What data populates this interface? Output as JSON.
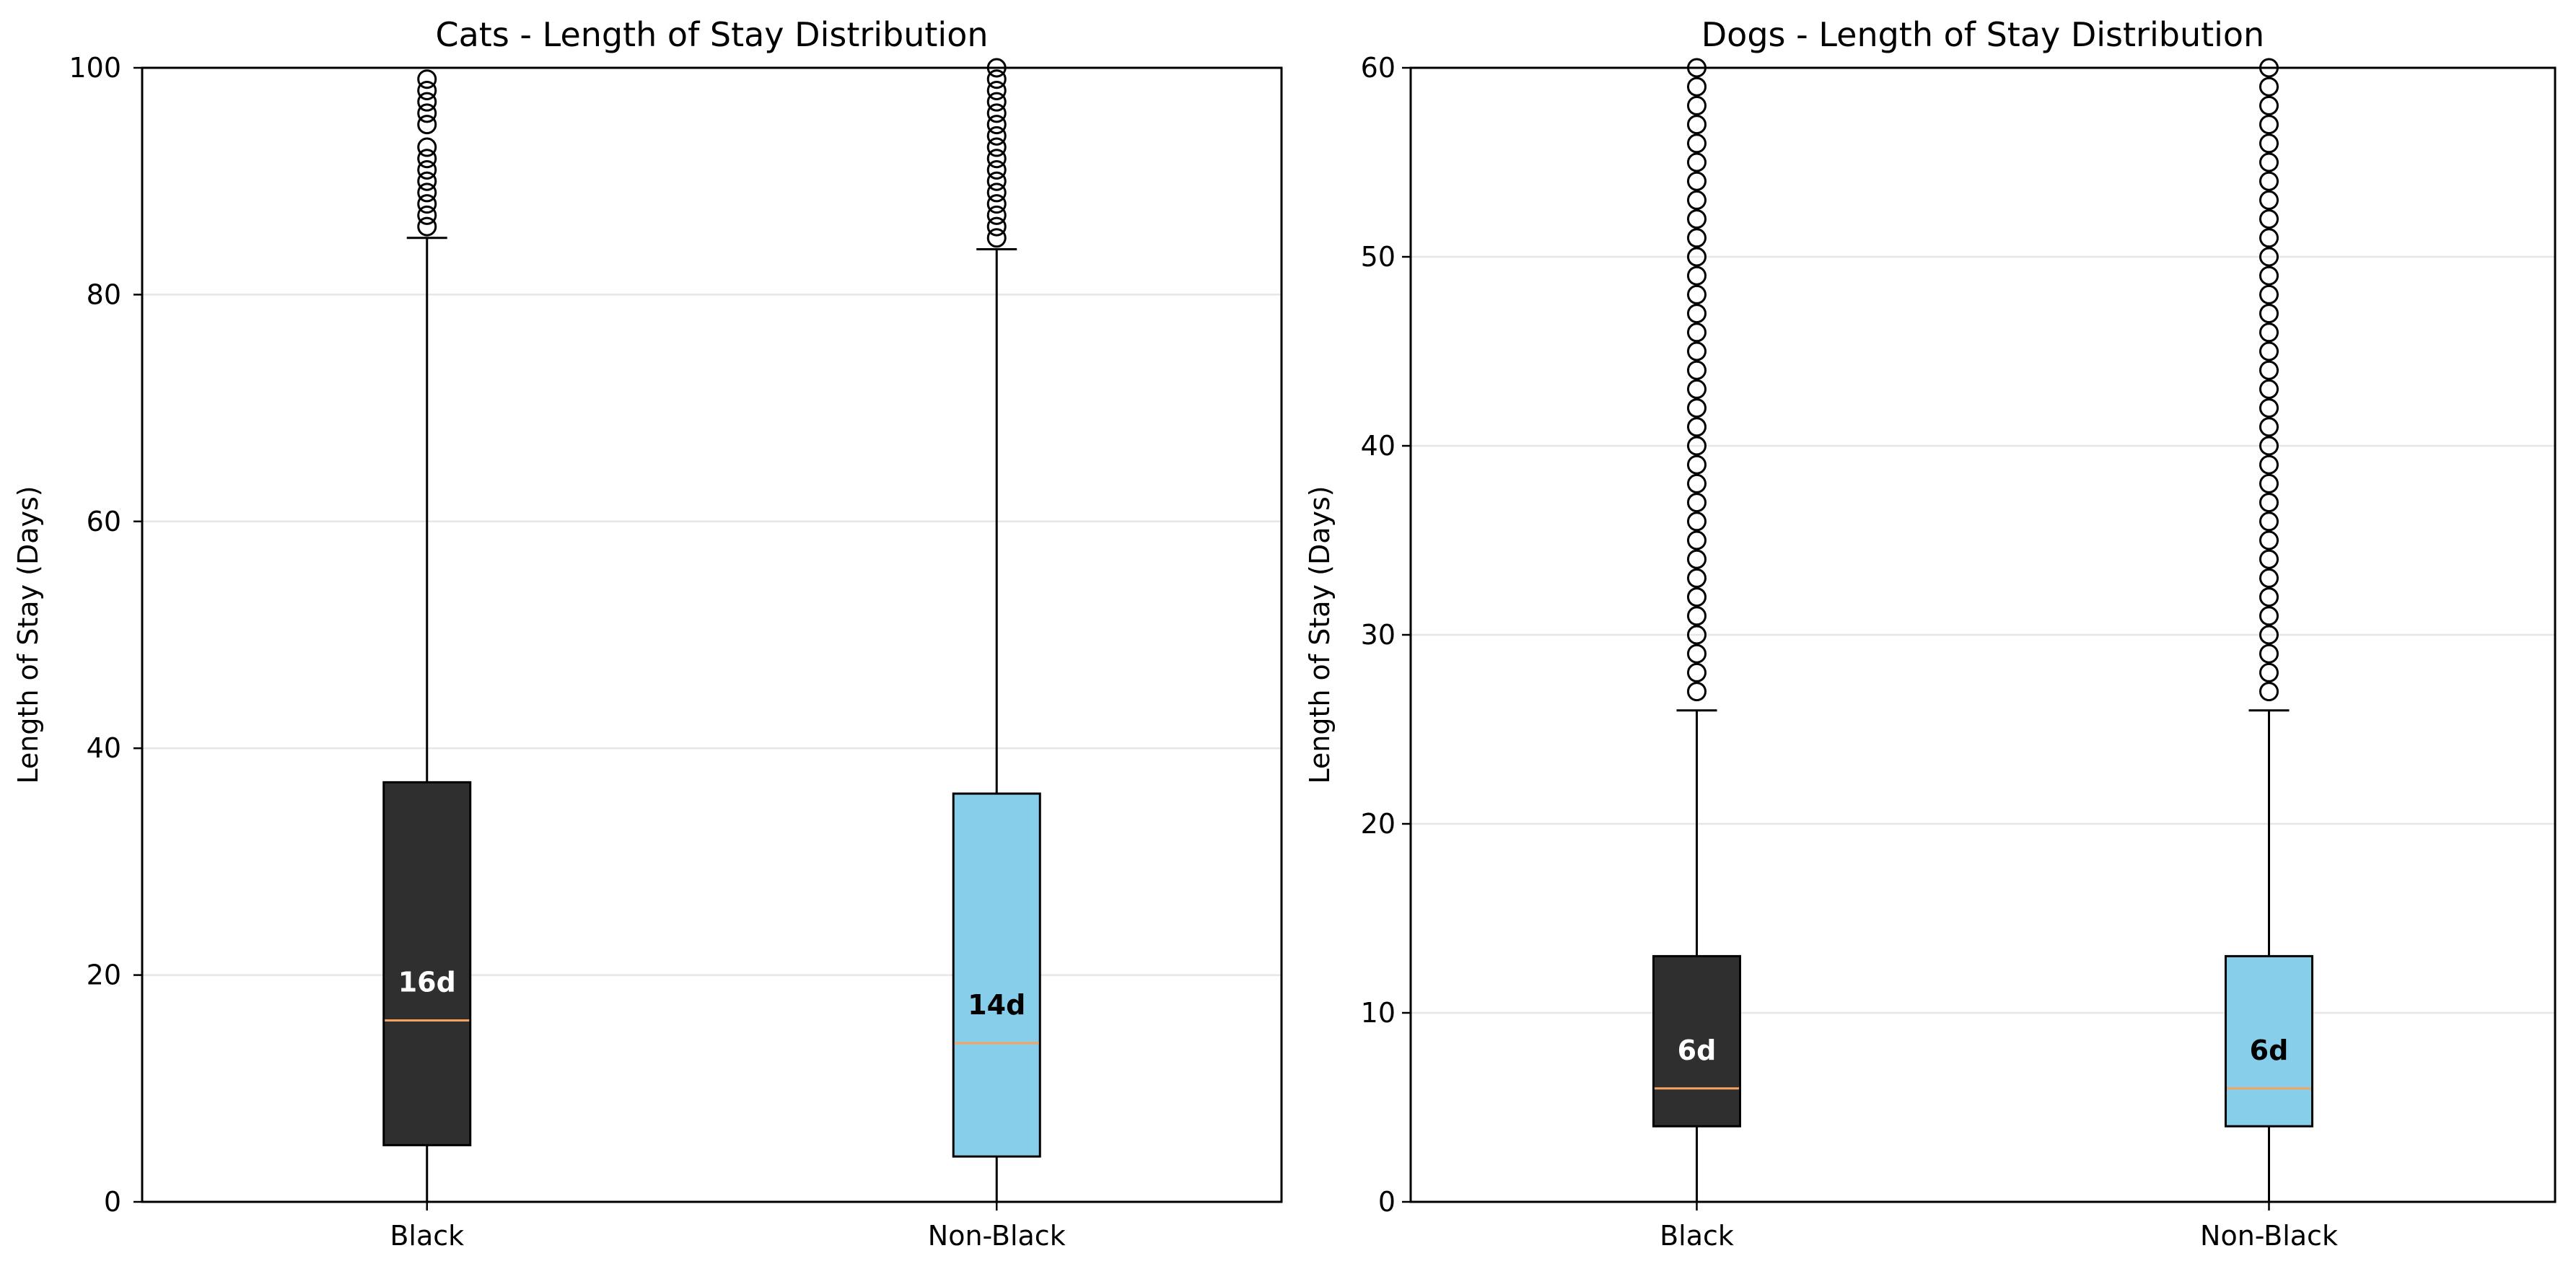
{
  "chart_data": [
    {
      "type": "box",
      "title": "Cats - Length of Stay Distribution",
      "xlabel": "",
      "ylabel": "Length of Stay (Days)",
      "ylim": [
        0,
        100
      ],
      "yticks": [
        0,
        20,
        40,
        60,
        80,
        100
      ],
      "grid": "y",
      "categories": [
        "Black",
        "Non-Black"
      ],
      "boxes": [
        {
          "category": "Black",
          "color": "#2f2f2f",
          "label_color": "#ffffff",
          "whisker_low": 0,
          "q1": 5,
          "median": 16,
          "q3": 37,
          "whisker_high": 85,
          "median_label": "16d",
          "outliers": [
            86,
            87,
            88,
            89,
            90,
            91,
            92,
            93,
            95,
            96,
            97,
            98,
            99
          ]
        },
        {
          "category": "Non-Black",
          "color": "#87ceeb",
          "label_color": "#000000",
          "whisker_low": 0,
          "q1": 4,
          "median": 14,
          "q3": 36,
          "whisker_high": 84,
          "median_label": "14d",
          "outliers": [
            85,
            86,
            87,
            88,
            89,
            90,
            91,
            92,
            93,
            94,
            95,
            96,
            97,
            98,
            99,
            100
          ]
        }
      ]
    },
    {
      "type": "box",
      "title": "Dogs - Length of Stay Distribution",
      "xlabel": "",
      "ylabel": "Length of Stay (Days)",
      "ylim": [
        0,
        60
      ],
      "yticks": [
        0,
        10,
        20,
        30,
        40,
        50,
        60
      ],
      "grid": "y",
      "categories": [
        "Black",
        "Non-Black"
      ],
      "boxes": [
        {
          "category": "Black",
          "color": "#2f2f2f",
          "label_color": "#ffffff",
          "whisker_low": 0,
          "q1": 4,
          "median": 6,
          "q3": 13,
          "whisker_high": 26,
          "median_label": "6d",
          "outliers": [
            27,
            28,
            29,
            30,
            31,
            32,
            33,
            34,
            35,
            36,
            37,
            38,
            39,
            40,
            41,
            42,
            43,
            44,
            45,
            46,
            47,
            48,
            49,
            50,
            51,
            52,
            53,
            54,
            55,
            56,
            57,
            58,
            59,
            60
          ]
        },
        {
          "category": "Non-Black",
          "color": "#87ceeb",
          "label_color": "#000000",
          "whisker_low": 0,
          "q1": 4,
          "median": 6,
          "q3": 13,
          "whisker_high": 26,
          "median_label": "6d",
          "outliers": [
            27,
            28,
            29,
            30,
            31,
            32,
            33,
            34,
            35,
            36,
            37,
            38,
            39,
            40,
            41,
            42,
            43,
            44,
            45,
            46,
            47,
            48,
            49,
            50,
            51,
            52,
            53,
            54,
            55,
            56,
            57,
            58,
            59,
            60
          ]
        }
      ]
    }
  ],
  "colors": {
    "median_line": "#f4a460",
    "grid": "#e6e6e6",
    "axis": "#000000"
  }
}
